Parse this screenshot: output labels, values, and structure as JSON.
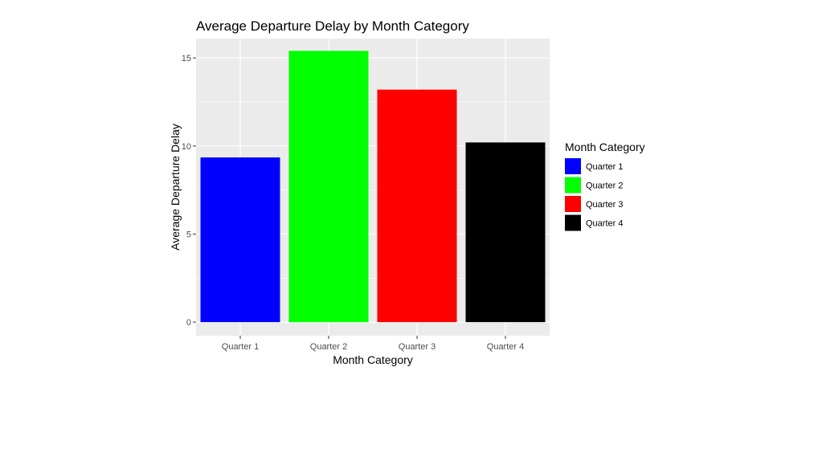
{
  "chart_data": {
    "type": "bar",
    "title": "Average Departure Delay by Month Category",
    "xlabel": "Month Category",
    "ylabel": "Average Departure Delay",
    "categories": [
      "Quarter 1",
      "Quarter 2",
      "Quarter 3",
      "Quarter 4"
    ],
    "values": [
      9.35,
      15.4,
      13.2,
      10.2
    ],
    "colors": [
      "#0000ff",
      "#00ff00",
      "#ff0000",
      "#000000"
    ],
    "ylim": [
      -0.77,
      16.1
    ],
    "yticks": [
      0,
      5,
      10,
      15
    ],
    "ytick_labels": [
      "0",
      "5",
      "10",
      "15"
    ],
    "grid": true,
    "panel_background": "#ebebeb",
    "legend": {
      "title": "Month Category",
      "placement": "right",
      "entries": [
        "Quarter 1",
        "Quarter 2",
        "Quarter 3",
        "Quarter 4"
      ]
    }
  }
}
